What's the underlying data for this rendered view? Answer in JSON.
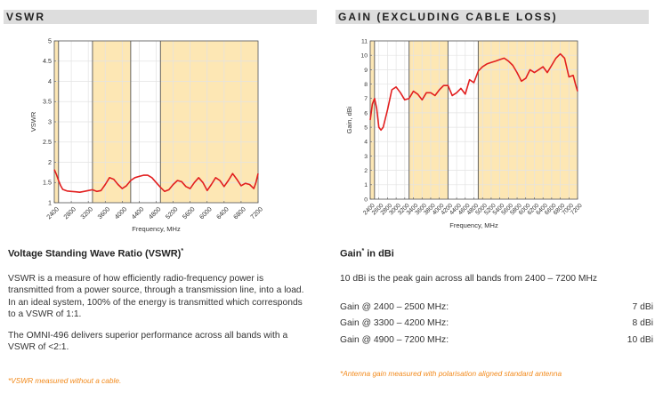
{
  "left": {
    "header": "VSWR",
    "subhead": "Voltage Standing Wave Ratio (VSWR)",
    "subhead_mark": "*",
    "para1": "VSWR is a measure of how efficiently radio-frequency power is transmitted from a power source, through a transmission line, into a load. In an ideal system, 100% of the energy is transmitted which corresponds to a VSWR of 1:1.",
    "para2": "The OMNI-496 delivers superior performance across all bands with a VSWR of <2:1.",
    "footnote": "*VSWR measured without a cable."
  },
  "right": {
    "header": "GAIN (EXCLUDING CABLE LOSS)",
    "subhead": "Gain",
    "subhead_mark": "*",
    "subhead_tail": " in dBi",
    "para1": "10 dBi is the peak gain across all bands from 2400 – 7200 MHz",
    "gain_rows": [
      {
        "label": "Gain @ 2400 – 2500 MHz:",
        "value": "7 dBi"
      },
      {
        "label": "Gain @ 3300 – 4200 MHz:",
        "value": "8 dBi"
      },
      {
        "label": "Gain @ 4900 – 7200 MHz:",
        "value": "10 dBi"
      }
    ],
    "footnote": "*Antenna gain measured with polarisation aligned standard antenna"
  },
  "colors": {
    "line": "#e21f1f",
    "band_fill": "#fde7b4",
    "band_edge": "#555555",
    "accent": "#f28a1c"
  },
  "chart_data": [
    {
      "type": "line",
      "title": "",
      "xlabel": "Frequency, MHz",
      "ylabel": "VSWR",
      "xlim": [
        2400,
        7200
      ],
      "ylim": [
        1,
        5
      ],
      "xticks": [
        "2400",
        "2800",
        "3200",
        "3600",
        "4000",
        "4400",
        "4800",
        "5200",
        "5600",
        "6000",
        "6400",
        "6800",
        "7200"
      ],
      "yticks": [
        "1",
        "1.5",
        "2",
        "2.5",
        "3",
        "3.5",
        "4",
        "4.5",
        "5"
      ],
      "grid": true,
      "highlight_bands": [
        [
          2400,
          2500
        ],
        [
          3300,
          4200
        ],
        [
          4900,
          7200
        ]
      ],
      "x": [
        2400,
        2450,
        2500,
        2550,
        2600,
        2700,
        2800,
        2900,
        3000,
        3100,
        3200,
        3300,
        3400,
        3500,
        3600,
        3700,
        3800,
        3900,
        4000,
        4100,
        4200,
        4300,
        4400,
        4500,
        4600,
        4700,
        4800,
        4900,
        5000,
        5100,
        5200,
        5300,
        5400,
        5500,
        5600,
        5700,
        5800,
        5900,
        6000,
        6100,
        6200,
        6300,
        6400,
        6500,
        6600,
        6700,
        6800,
        6900,
        7000,
        7100,
        7150,
        7200
      ],
      "y": [
        1.82,
        1.7,
        1.55,
        1.42,
        1.33,
        1.29,
        1.28,
        1.27,
        1.26,
        1.28,
        1.3,
        1.32,
        1.28,
        1.3,
        1.45,
        1.62,
        1.58,
        1.45,
        1.35,
        1.42,
        1.55,
        1.62,
        1.65,
        1.68,
        1.68,
        1.62,
        1.5,
        1.38,
        1.28,
        1.32,
        1.45,
        1.55,
        1.52,
        1.4,
        1.35,
        1.5,
        1.62,
        1.5,
        1.3,
        1.45,
        1.62,
        1.55,
        1.4,
        1.55,
        1.72,
        1.58,
        1.42,
        1.48,
        1.45,
        1.35,
        1.5,
        1.72
      ]
    },
    {
      "type": "line",
      "title": "",
      "xlabel": "Frequency, MHz",
      "ylabel": "Gain, dBi",
      "xlim": [
        2400,
        7200
      ],
      "ylim": [
        0,
        11
      ],
      "xticks": [
        "2400",
        "2600",
        "2800",
        "3000",
        "3200",
        "3400",
        "3600",
        "3800",
        "4000",
        "4200",
        "4400",
        "4600",
        "4800",
        "5000",
        "5200",
        "5400",
        "5600",
        "5800",
        "6000",
        "6200",
        "6400",
        "6600",
        "6800",
        "7000",
        "7200"
      ],
      "yticks": [
        "0",
        "1",
        "2",
        "3",
        "4",
        "5",
        "6",
        "7",
        "8",
        "9",
        "10",
        "11"
      ],
      "grid": true,
      "highlight_bands": [
        [
          2400,
          2500
        ],
        [
          3300,
          4200
        ],
        [
          4900,
          7200
        ]
      ],
      "x": [
        2400,
        2450,
        2500,
        2550,
        2600,
        2650,
        2700,
        2800,
        2900,
        3000,
        3100,
        3200,
        3300,
        3400,
        3500,
        3600,
        3700,
        3800,
        3900,
        4000,
        4100,
        4200,
        4300,
        4400,
        4500,
        4600,
        4700,
        4800,
        4900,
        5000,
        5100,
        5200,
        5300,
        5400,
        5500,
        5600,
        5700,
        5800,
        5900,
        6000,
        6100,
        6200,
        6300,
        6400,
        6500,
        6600,
        6700,
        6800,
        6900,
        7000,
        7100,
        7150,
        7200
      ],
      "y": [
        5.5,
        6.6,
        7.0,
        6.3,
        5.0,
        4.8,
        5.0,
        6.2,
        7.6,
        7.8,
        7.4,
        6.9,
        7.0,
        7.5,
        7.3,
        6.9,
        7.4,
        7.4,
        7.2,
        7.6,
        7.9,
        7.9,
        7.2,
        7.4,
        7.7,
        7.3,
        8.3,
        8.1,
        8.9,
        9.2,
        9.4,
        9.5,
        9.6,
        9.7,
        9.8,
        9.6,
        9.3,
        8.8,
        8.2,
        8.4,
        9.0,
        8.8,
        9.0,
        9.2,
        8.8,
        9.3,
        9.8,
        10.1,
        9.8,
        8.5,
        8.6,
        8.0,
        7.5
      ]
    }
  ]
}
